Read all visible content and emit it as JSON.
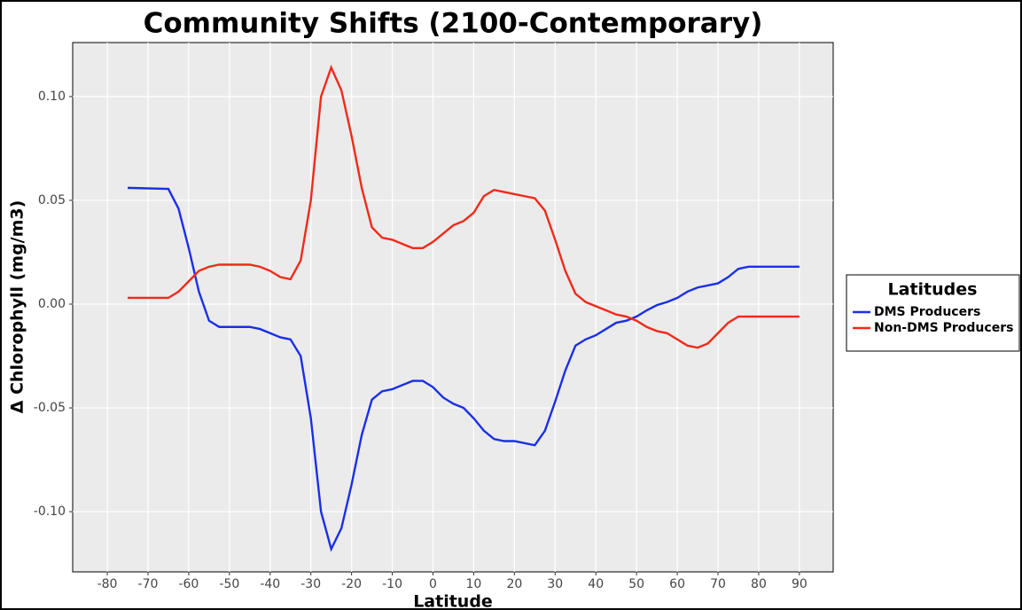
{
  "chart_data": {
    "type": "line",
    "title": "Community Shifts (2100-Contemporary)",
    "x_label": "Latitude",
    "y_label": "Δ Chlorophyll (mg/m3)",
    "legend_title": "Latitudes",
    "legend_position": "right",
    "grid": true,
    "x": [
      -75,
      -65,
      -62.5,
      -60,
      -57.5,
      -55,
      -52.5,
      -50,
      -47.5,
      -45,
      -42.5,
      -40,
      -37.5,
      -35,
      -32.5,
      -30,
      -27.5,
      -25,
      -22.5,
      -20,
      -17.5,
      -15,
      -12.5,
      -10,
      -7.5,
      -5,
      -2.5,
      0,
      2.5,
      5,
      7.5,
      10,
      12.5,
      15,
      17.5,
      20,
      22.5,
      25,
      27.5,
      30,
      32.5,
      35,
      37.5,
      40,
      42.5,
      45,
      47.5,
      50,
      52.5,
      55,
      57.5,
      60,
      62.5,
      65,
      67.5,
      70,
      72.5,
      75,
      77.5,
      90
    ],
    "series": [
      {
        "name": "DMS Producers",
        "color": "#1a2fe8",
        "values": [
          0.056,
          0.0555,
          0.046,
          0.027,
          0.006,
          -0.008,
          -0.011,
          -0.011,
          -0.011,
          -0.011,
          -0.012,
          -0.014,
          -0.016,
          -0.017,
          -0.025,
          -0.055,
          -0.1,
          -0.118,
          -0.108,
          -0.087,
          -0.063,
          -0.046,
          -0.042,
          -0.041,
          -0.039,
          -0.037,
          -0.037,
          -0.04,
          -0.045,
          -0.048,
          -0.05,
          -0.055,
          -0.061,
          -0.065,
          -0.066,
          -0.066,
          -0.067,
          -0.068,
          -0.061,
          -0.047,
          -0.032,
          -0.02,
          -0.017,
          -0.015,
          -0.012,
          -0.009,
          -0.008,
          -0.006,
          -0.003,
          -0.0005,
          0.001,
          0.003,
          0.006,
          0.008,
          0.009,
          0.01,
          0.013,
          0.017,
          0.018,
          0.018
        ]
      },
      {
        "name": "Non-DMS Producers",
        "color": "#f02a1a",
        "values": [
          0.003,
          0.003,
          0.006,
          0.011,
          0.016,
          0.018,
          0.019,
          0.019,
          0.019,
          0.019,
          0.018,
          0.016,
          0.013,
          0.012,
          0.021,
          0.05,
          0.1,
          0.114,
          0.103,
          0.081,
          0.056,
          0.037,
          0.032,
          0.031,
          0.029,
          0.027,
          0.027,
          0.03,
          0.034,
          0.038,
          0.04,
          0.044,
          0.052,
          0.055,
          0.054,
          0.053,
          0.052,
          0.051,
          0.045,
          0.031,
          0.016,
          0.005,
          0.001,
          -0.001,
          -0.003,
          -0.005,
          -0.006,
          -0.008,
          -0.011,
          -0.013,
          -0.014,
          -0.017,
          -0.02,
          -0.021,
          -0.019,
          -0.014,
          -0.009,
          -0.006,
          -0.006,
          -0.006
        ]
      }
    ],
    "xlim": [
      -88.5,
      98.3
    ],
    "ylim": [
      -0.129,
      0.126
    ],
    "xticks": [
      -80,
      -70,
      -60,
      -50,
      -40,
      -30,
      -20,
      -10,
      0,
      10,
      20,
      30,
      40,
      50,
      60,
      70,
      80,
      90
    ],
    "yticks": [
      {
        "value": -0.1,
        "label": "-0.10"
      },
      {
        "value": -0.05,
        "label": "-0.05"
      },
      {
        "value": 0,
        "label": "0.00"
      },
      {
        "value": 0.05,
        "label": "0.05"
      },
      {
        "value": 0.1,
        "label": "0.10"
      }
    ]
  }
}
